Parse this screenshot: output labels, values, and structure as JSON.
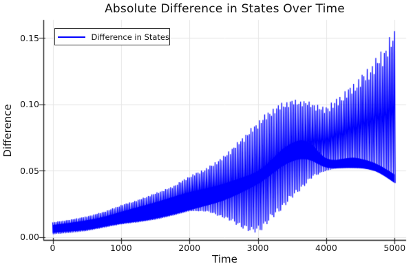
{
  "title": "Absolute Difference in States Over Time",
  "legend": {
    "label": "Difference in States"
  },
  "colors": {
    "line": "#0000FF",
    "grid": "#e5e5e5",
    "axis": "#1a1a1a",
    "tick_text": "#1a1a1a",
    "background": "#ffffff"
  },
  "chart_data": {
    "type": "line",
    "title": "Absolute Difference in States Over Time",
    "xlabel": "Time",
    "ylabel": "Difference",
    "legend_entries": [
      "Difference in States"
    ],
    "legend_position": "top-left",
    "grid": true,
    "line_color": "#0000FF",
    "x_ticks": [
      "0",
      "1000",
      "2000",
      "3000",
      "4000",
      "5000"
    ],
    "x_tick_values": [
      0,
      1000,
      2000,
      3000,
      4000,
      5000
    ],
    "y_ticks": [
      "0.00",
      "0.05",
      "0.10",
      "0.15"
    ],
    "y_tick_values": [
      0.0,
      0.05,
      0.1,
      0.15
    ],
    "xlim": [
      -136,
      5166
    ],
    "ylim": [
      -0.0023,
      0.1634
    ],
    "x_range_data": [
      0,
      5000
    ],
    "oscillation_step": 25,
    "note": "Fast oscillation (period ~25 time units) drawn as a dense comb of near-vertical strokes; the readable content is the envelope structure sampled below.",
    "envelope": {
      "t": [
        0,
        250,
        500,
        750,
        1000,
        1250,
        1500,
        1750,
        2000,
        2250,
        2500,
        2750,
        2900,
        3050,
        3200,
        3350,
        3500,
        3650,
        3800,
        3950,
        4100,
        4250,
        4400,
        4550,
        4700,
        4850,
        5000
      ],
      "upper": [
        0.011,
        0.013,
        0.0155,
        0.019,
        0.024,
        0.028,
        0.033,
        0.038,
        0.046,
        0.052,
        0.061,
        0.074,
        0.082,
        0.09,
        0.0965,
        0.101,
        0.1035,
        0.103,
        0.1015,
        0.098,
        0.102,
        0.109,
        0.116,
        0.124,
        0.133,
        0.144,
        0.157
      ],
      "lower": [
        0.002,
        0.003,
        0.0045,
        0.007,
        0.0095,
        0.011,
        0.013,
        0.016,
        0.0195,
        0.019,
        0.014,
        0.007,
        0.002,
        0.005,
        0.013,
        0.021,
        0.029,
        0.037,
        0.045,
        0.049,
        0.0513,
        0.052,
        0.052,
        0.0515,
        0.05,
        0.046,
        0.0405
      ],
      "core_bottom": [
        0.003,
        0.004,
        0.005,
        0.0075,
        0.01,
        0.0115,
        0.0135,
        0.0165,
        0.02,
        0.0235,
        0.027,
        0.033,
        0.037,
        0.041,
        0.047,
        0.053,
        0.057,
        0.059,
        0.0575,
        0.0525,
        0.0513,
        0.052,
        0.052,
        0.0515,
        0.05,
        0.046,
        0.0405
      ],
      "core_top": [
        0.009,
        0.0105,
        0.0125,
        0.015,
        0.019,
        0.0225,
        0.026,
        0.03,
        0.034,
        0.0365,
        0.04,
        0.0445,
        0.047,
        0.051,
        0.058,
        0.066,
        0.071,
        0.0735,
        0.07,
        0.06,
        0.0575,
        0.059,
        0.06,
        0.0585,
        0.056,
        0.052,
        0.047
      ]
    }
  }
}
